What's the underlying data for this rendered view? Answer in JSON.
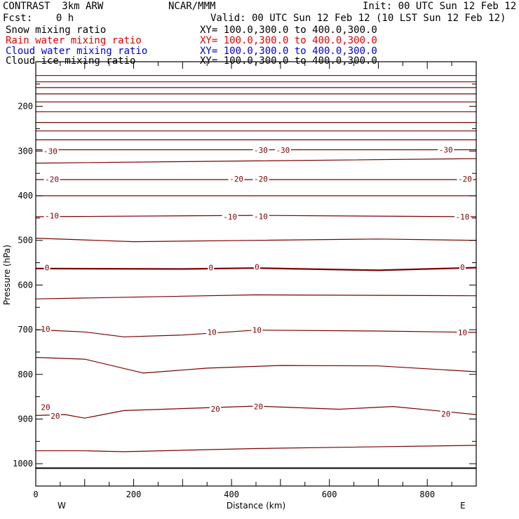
{
  "header": {
    "model": "CONTRAST  3km ARW",
    "center": "NCAR/MMM",
    "init": "Init: 00 UTC Sun 12 Feb 12",
    "fcst": "Fcst:    0 h",
    "valid": "Valid: 00 UTC Sun 12 Feb 12 (10 LST Sun 12 Feb 12)",
    "fields": [
      {
        "label": "Snow mixing ratio",
        "xy": "XY= 100.0,300.0 to 400.0,300.0",
        "color": "#000000"
      },
      {
        "label": "Rain water mixing ratio",
        "xy": "XY= 100.0,300.0 to 400.0,300.0",
        "color": "#e00000"
      },
      {
        "label": "Cloud water mixing ratio",
        "xy": "XY= 100.0,300.0 to 400.0,300.0",
        "color": "#0000cc"
      },
      {
        "label": "Cloud ice mixing ratio",
        "xy": "XY= 100.0,300.0 to 400.0,300.0",
        "color": "#000000"
      }
    ]
  },
  "colors": {
    "contour": "#7a0000",
    "axis": "#000000"
  },
  "chart_data": {
    "type": "line",
    "xlabel": "Distance (km)",
    "ylabel": "Pressure (hPa)",
    "xlim": [
      0,
      900
    ],
    "ylim": [
      1050,
      100
    ],
    "x_ticks": [
      0,
      200,
      400,
      600,
      800
    ],
    "y_ticks": [
      200,
      300,
      400,
      500,
      600,
      700,
      800,
      900,
      1000
    ],
    "direction_labels": {
      "left": "W",
      "right": "E"
    },
    "surface_pressure": 1010,
    "series": [
      {
        "x": [
          0,
          900
        ],
        "y": [
          131,
          131
        ]
      },
      {
        "x": [
          0,
          900
        ],
        "y": [
          145,
          145
        ]
      },
      {
        "x": [
          0,
          900
        ],
        "y": [
          158,
          158
        ]
      },
      {
        "x": [
          0,
          900
        ],
        "y": [
          172,
          172
        ]
      },
      {
        "x": [
          0,
          900
        ],
        "y": [
          190,
          190
        ]
      },
      {
        "x": [
          0,
          900
        ],
        "y": [
          212,
          212
        ]
      },
      {
        "x": [
          0,
          900
        ],
        "y": [
          236,
          236
        ]
      },
      {
        "x": [
          0,
          900
        ],
        "y": [
          255,
          255
        ]
      },
      {
        "x": [
          0,
          900
        ],
        "y": [
          275,
          275
        ]
      },
      {
        "x": [
          0,
          900
        ],
        "y": [
          297,
          297
        ]
      },
      {
        "x": [
          0,
          450,
          900
        ],
        "y": [
          327,
          322,
          317
        ]
      },
      {
        "x": [
          0,
          900
        ],
        "y": [
          364,
          364
        ]
      },
      {
        "x": [
          0,
          900
        ],
        "y": [
          400,
          400
        ]
      },
      {
        "x": [
          0,
          450,
          900
        ],
        "y": [
          447,
          444,
          447
        ]
      },
      {
        "x": [
          0,
          200,
          450,
          700,
          900
        ],
        "y": [
          495,
          503,
          500,
          497,
          500
        ]
      },
      {
        "x": [
          0,
          300,
          450,
          700,
          900
        ],
        "y": [
          563,
          564,
          562,
          567,
          561
        ]
      },
      {
        "x": [
          0,
          450,
          900
        ],
        "y": [
          631,
          622,
          624
        ]
      },
      {
        "x": [
          0,
          100,
          180,
          300,
          450,
          700,
          900
        ],
        "y": [
          700,
          705,
          716,
          712,
          701,
          703,
          706
        ]
      },
      {
        "x": [
          0,
          100,
          220,
          350,
          500,
          700,
          900
        ],
        "y": [
          762,
          766,
          797,
          786,
          780,
          781,
          794
        ]
      },
      {
        "x": [
          0,
          60,
          100,
          180,
          450,
          620,
          730,
          900
        ],
        "y": [
          892,
          890,
          898,
          881,
          871,
          878,
          872,
          890
        ]
      },
      {
        "x": [
          0,
          100,
          180,
          450,
          900
        ],
        "y": [
          971,
          971,
          973,
          966,
          959
        ]
      }
    ],
    "contour_labels": [
      {
        "text": "-30",
        "x": 30,
        "p": 300
      },
      {
        "text": "-30",
        "x": 460,
        "p": 298
      },
      {
        "text": "-30",
        "x": 505,
        "p": 298
      },
      {
        "text": "-30",
        "x": 838,
        "p": 297
      },
      {
        "text": "-20",
        "x": 33,
        "p": 363
      },
      {
        "text": "-20",
        "x": 410,
        "p": 362
      },
      {
        "text": "-20",
        "x": 460,
        "p": 362
      },
      {
        "text": "-20",
        "x": 877,
        "p": 362
      },
      {
        "text": "-10",
        "x": 33,
        "p": 445
      },
      {
        "text": "-10",
        "x": 397,
        "p": 447
      },
      {
        "text": "-10",
        "x": 460,
        "p": 446
      },
      {
        "text": "-10",
        "x": 872,
        "p": 447
      },
      {
        "text": "0",
        "x": 23,
        "p": 561
      },
      {
        "text": "0",
        "x": 358,
        "p": 561
      },
      {
        "text": "0",
        "x": 452,
        "p": 559
      },
      {
        "text": "0",
        "x": 872,
        "p": 560
      },
      {
        "text": "10",
        "x": 20,
        "p": 698
      },
      {
        "text": "10",
        "x": 360,
        "p": 705
      },
      {
        "text": "10",
        "x": 452,
        "p": 701
      },
      {
        "text": "10",
        "x": 872,
        "p": 706
      },
      {
        "text": "20",
        "x": 20,
        "p": 873
      },
      {
        "text": "20",
        "x": 40,
        "p": 893
      },
      {
        "text": "20",
        "x": 367,
        "p": 877
      },
      {
        "text": "20",
        "x": 455,
        "p": 872
      },
      {
        "text": "20",
        "x": 838,
        "p": 888
      }
    ]
  }
}
